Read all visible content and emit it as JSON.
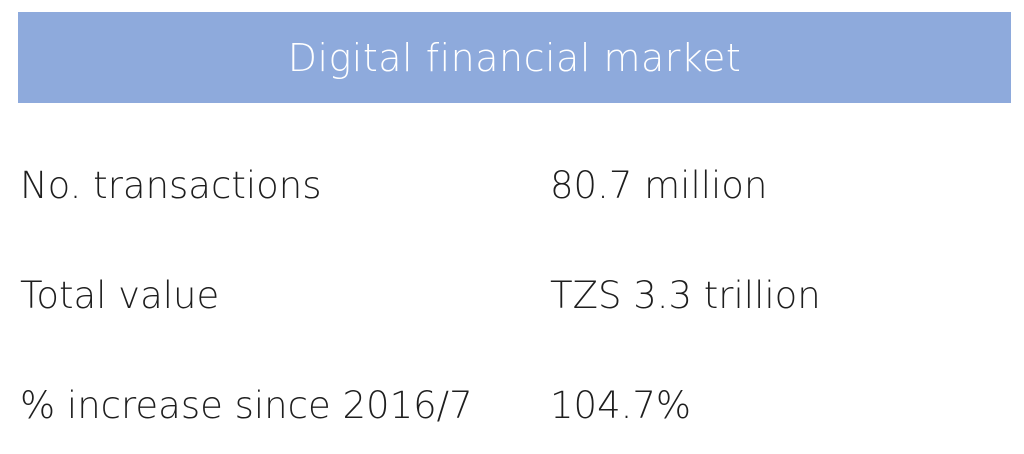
{
  "header": {
    "title": "Digital financial market",
    "background_color": "#8eaadc"
  },
  "rows": [
    {
      "label": "No. transactions",
      "value": "80.7 million"
    },
    {
      "label": "Total value",
      "value": "TZS 3.3 trillion"
    },
    {
      "label": "% increase since 2016/7",
      "value": "104.7%"
    }
  ]
}
